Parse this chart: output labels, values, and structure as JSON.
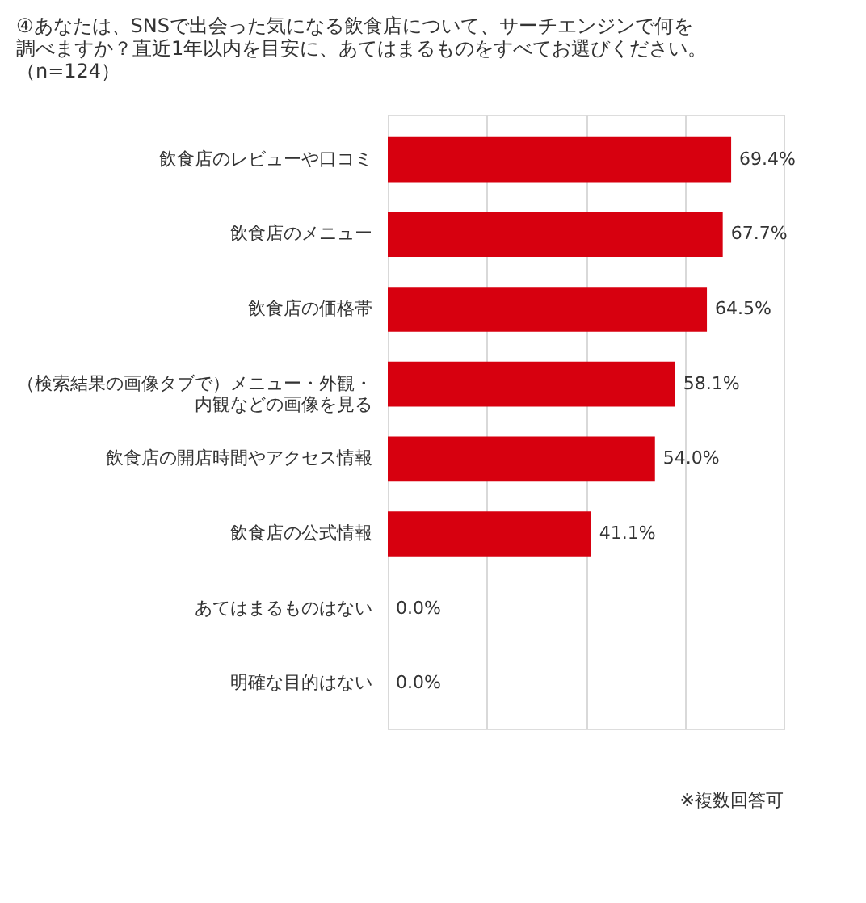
{
  "chart_data": {
    "type": "bar",
    "orientation": "horizontal",
    "title": "④あなたは、SNSで出会った気になる飲食店について、サーチエンジンで何を調べますか？直近1年以内を目安に、あてはまるものをすべてお選びください。（n=124）",
    "categories": [
      "飲食店のレビューや口コミ",
      "飲食店のメニュー",
      "飲食店の価格帯",
      "（検索結果の画像タブで）メニュー・外観・内観などの画像を見る",
      "飲食店の開店時間やアクセス情報",
      "飲食店の公式情報",
      "あてはまるものはない",
      "明確な目的はない"
    ],
    "values": [
      69.4,
      67.7,
      64.5,
      58.1,
      54.0,
      41.1,
      0.0,
      0.0
    ],
    "value_labels": [
      "69.4%",
      "67.7%",
      "64.5%",
      "58.1%",
      "54.0%",
      "41.1%",
      "0.0%",
      "0.0%"
    ],
    "color": "#d7000f",
    "xlim": [
      0,
      80
    ],
    "xticks": [
      {
        "value": 0,
        "label": null
      },
      {
        "value": 20,
        "label": null
      },
      {
        "value": 40,
        "label": null
      },
      {
        "value": 60,
        "label": null
      },
      {
        "value": 80,
        "label": null
      }
    ],
    "tick_labels": "y",
    "grid": "x",
    "annotations": [
      "※複数回答可"
    ]
  }
}
